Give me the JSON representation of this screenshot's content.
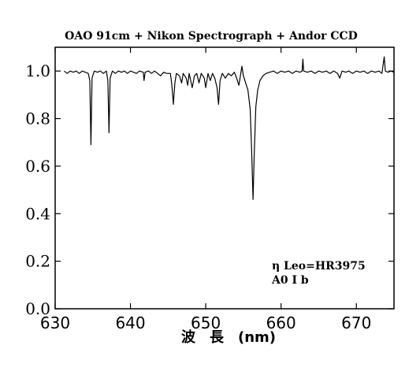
{
  "chart_data": {
    "type": "line",
    "title": "OAO 91cm + Nikon Spectrograph + Andor CCD",
    "xlabel": "波　長　(nm)",
    "ylabel": "",
    "xlim": [
      630,
      675
    ],
    "ylim": [
      0.0,
      1.1
    ],
    "x_ticks": [
      630,
      640,
      650,
      660,
      670
    ],
    "y_ticks": [
      0.0,
      0.2,
      0.4,
      0.6,
      0.8,
      1.0
    ],
    "x_tick_labels": [
      "630",
      "640",
      "650",
      "660",
      "670"
    ],
    "y_tick_labels": [
      "0.0",
      "0.2",
      "0.4",
      "0.6",
      "0.8",
      "1.0"
    ],
    "grid": false,
    "line_color": "#000000",
    "annotations": [
      "η Leo=HR3975",
      "A0 Ⅰ b"
    ],
    "series": [
      {
        "name": "",
        "points": [
          [
            631.2,
            1.0
          ],
          [
            631.6,
            0.99
          ],
          [
            632.0,
            1.0
          ],
          [
            632.4,
            0.995
          ],
          [
            632.8,
            1.0
          ],
          [
            633.2,
            0.99
          ],
          [
            633.6,
            1.0
          ],
          [
            634.0,
            0.995
          ],
          [
            634.4,
            0.99
          ],
          [
            634.6,
            0.96
          ],
          [
            634.75,
            0.69
          ],
          [
            634.9,
            0.97
          ],
          [
            635.2,
            1.0
          ],
          [
            635.6,
            0.995
          ],
          [
            636.0,
            1.0
          ],
          [
            636.4,
            0.99
          ],
          [
            636.8,
            1.0
          ],
          [
            637.0,
            0.96
          ],
          [
            637.15,
            0.74
          ],
          [
            637.3,
            0.97
          ],
          [
            637.6,
            1.0
          ],
          [
            638.0,
            0.99
          ],
          [
            638.4,
            1.0
          ],
          [
            638.8,
            0.995
          ],
          [
            639.2,
            1.0
          ],
          [
            639.6,
            0.99
          ],
          [
            640.0,
            1.0
          ],
          [
            640.4,
            0.995
          ],
          [
            640.8,
            0.99
          ],
          [
            641.2,
            1.0
          ],
          [
            641.7,
            0.995
          ],
          [
            641.8,
            0.96
          ],
          [
            641.95,
            0.995
          ],
          [
            642.4,
            1.0
          ],
          [
            642.8,
            0.99
          ],
          [
            643.2,
            1.0
          ],
          [
            643.6,
            0.99
          ],
          [
            644.0,
            0.98
          ],
          [
            644.4,
            0.995
          ],
          [
            644.8,
            0.99
          ],
          [
            645.3,
            0.99
          ],
          [
            645.5,
            0.94
          ],
          [
            645.7,
            0.86
          ],
          [
            645.9,
            0.95
          ],
          [
            646.1,
            0.99
          ],
          [
            646.5,
            0.98
          ],
          [
            646.8,
            0.95
          ],
          [
            647.0,
            0.99
          ],
          [
            647.4,
            0.97
          ],
          [
            647.6,
            0.94
          ],
          [
            647.8,
            0.99
          ],
          [
            648.2,
            0.93
          ],
          [
            648.5,
            0.98
          ],
          [
            648.8,
            0.99
          ],
          [
            649.1,
            0.95
          ],
          [
            649.4,
            0.99
          ],
          [
            649.8,
            0.97
          ],
          [
            650.0,
            0.93
          ],
          [
            650.3,
            0.99
          ],
          [
            650.6,
            0.96
          ],
          [
            650.9,
            0.99
          ],
          [
            651.2,
            0.97
          ],
          [
            651.5,
            0.93
          ],
          [
            651.7,
            0.86
          ],
          [
            651.9,
            0.96
          ],
          [
            652.2,
            0.99
          ],
          [
            652.6,
            0.97
          ],
          [
            653.0,
            0.99
          ],
          [
            653.4,
            0.98
          ],
          [
            653.8,
            0.995
          ],
          [
            654.1,
            0.97
          ],
          [
            654.4,
            0.94
          ],
          [
            654.6,
            0.98
          ],
          [
            654.8,
            1.02
          ],
          [
            655.0,
            0.98
          ],
          [
            655.3,
            0.95
          ],
          [
            655.6,
            0.92
          ],
          [
            655.9,
            0.84
          ],
          [
            656.1,
            0.66
          ],
          [
            656.28,
            0.46
          ],
          [
            656.45,
            0.66
          ],
          [
            656.65,
            0.85
          ],
          [
            656.9,
            0.92
          ],
          [
            657.2,
            0.96
          ],
          [
            657.6,
            0.98
          ],
          [
            658.0,
            0.99
          ],
          [
            658.5,
            0.995
          ],
          [
            659.0,
            1.0
          ],
          [
            659.5,
            0.99
          ],
          [
            660.0,
            1.0
          ],
          [
            660.5,
            0.995
          ],
          [
            661.0,
            1.0
          ],
          [
            661.5,
            0.99
          ],
          [
            662.0,
            1.0
          ],
          [
            662.5,
            0.995
          ],
          [
            662.8,
            1.0
          ],
          [
            662.9,
            1.05
          ],
          [
            663.0,
            1.0
          ],
          [
            663.5,
            0.995
          ],
          [
            664.0,
            1.0
          ],
          [
            664.5,
            0.99
          ],
          [
            665.0,
            1.0
          ],
          [
            665.5,
            0.995
          ],
          [
            666.0,
            1.0
          ],
          [
            666.5,
            0.99
          ],
          [
            667.0,
            1.0
          ],
          [
            667.5,
            0.99
          ],
          [
            667.8,
            0.97
          ],
          [
            668.1,
            1.0
          ],
          [
            668.6,
            0.995
          ],
          [
            669.0,
            1.0
          ],
          [
            669.5,
            0.99
          ],
          [
            670.0,
            1.0
          ],
          [
            670.5,
            0.995
          ],
          [
            671.0,
            1.0
          ],
          [
            671.5,
            0.99
          ],
          [
            672.0,
            1.0
          ],
          [
            672.5,
            0.995
          ],
          [
            673.0,
            1.0
          ],
          [
            673.4,
            0.99
          ],
          [
            673.7,
            1.06
          ],
          [
            673.85,
            1.0
          ],
          [
            674.2,
            0.995
          ],
          [
            674.6,
            1.0
          ],
          [
            675.0,
            0.995
          ]
        ]
      }
    ]
  }
}
